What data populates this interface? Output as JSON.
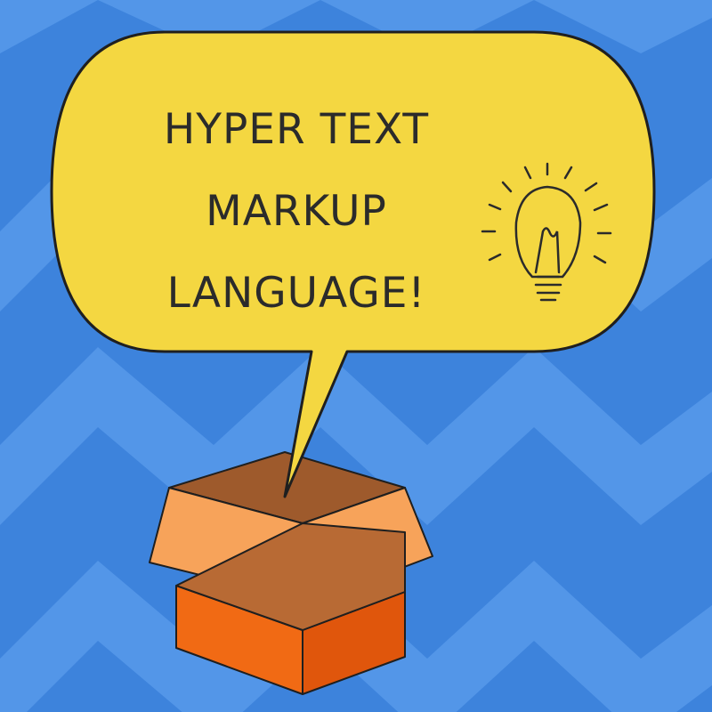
{
  "headline": {
    "line1": "HYPER TEXT",
    "line2": "MARKUP",
    "line3": "LANGUAGE!"
  },
  "colors": {
    "background": "#3d83dc",
    "zigzag_band": "#5396e8",
    "bubble_fill": "#f4d741",
    "outline": "#1f1f1f",
    "box_front": "#f16a14",
    "box_side": "#e0560c",
    "box_inside": "#9e5a2c",
    "box_flaps": "#f7a35a"
  },
  "icons": [
    "lightbulb-icon",
    "speech-bubble",
    "open-box"
  ]
}
